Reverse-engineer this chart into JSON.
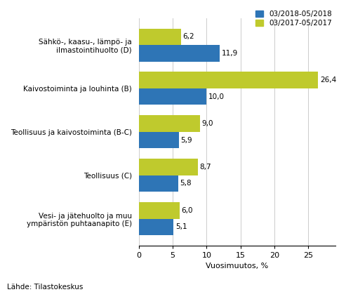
{
  "categories": [
    "Sähkö-, kaasu-, lämpö- ja\nilmastointihuolto (D)",
    "Kaivostoiminta ja louhinta (B)",
    "Teollisuus ja kaivostoiminta (B-C)",
    "Teollisuus (C)",
    "Vesi- ja jätehuolto ja muu\nympäristön puhtaanapito (E)"
  ],
  "values_2018": [
    11.9,
    10.0,
    5.9,
    5.8,
    5.1
  ],
  "values_2017": [
    6.2,
    26.4,
    9.0,
    8.7,
    6.0
  ],
  "labels_2018": [
    "11,9",
    "10,0",
    "5,9",
    "5,8",
    "5,1"
  ],
  "labels_2017": [
    "6,2",
    "26,4",
    "9,0",
    "8,7",
    "6,0"
  ],
  "color_2018": "#2E75B6",
  "color_2017": "#BFCA2D",
  "legend_2018": "03/2018-05/2018",
  "legend_2017": "03/2017-05/2017",
  "xlabel": "Vuosimuutos, %",
  "xlim": [
    0,
    29
  ],
  "xticks": [
    0,
    5,
    10,
    15,
    20,
    25
  ],
  "footnote": "Lähde: Tilastokeskus",
  "bar_height": 0.38,
  "grid_color": "#cccccc",
  "background_color": "#ffffff"
}
